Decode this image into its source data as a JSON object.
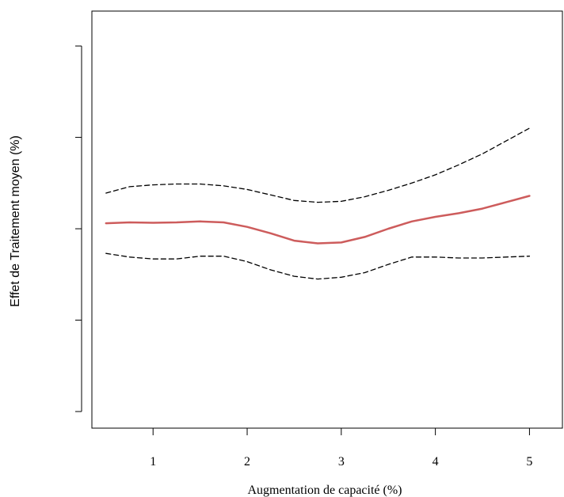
{
  "chart_data": {
    "type": "line",
    "title": "",
    "xlabel": "Augmentation de capacité (%)",
    "ylabel": "Effet de Traitement moyen (%)",
    "x": [
      0.5,
      0.75,
      1.0,
      1.25,
      1.5,
      1.75,
      2.0,
      2.25,
      2.5,
      2.75,
      3.0,
      3.25,
      3.5,
      3.75,
      4.0,
      4.25,
      4.5,
      4.75,
      5.0
    ],
    "xlim": [
      0.35,
      5.35
    ],
    "ylim": [
      0,
      4.2
    ],
    "x_ticks": [
      1,
      2,
      3,
      4,
      5
    ],
    "x_tick_labels": [
      "1",
      "2",
      "3",
      "4",
      "5"
    ],
    "y_ticks": [
      0,
      1,
      2,
      3,
      4
    ],
    "y_tick_labels": [
      "",
      "",
      "",
      "",
      ""
    ],
    "grid": false,
    "legend": "none",
    "series": [
      {
        "role": "upper",
        "style": "dashed",
        "color": "#000000",
        "values": [
          2.39,
          2.46,
          2.48,
          2.49,
          2.49,
          2.47,
          2.43,
          2.37,
          2.31,
          2.29,
          2.3,
          2.35,
          2.42,
          2.5,
          2.59,
          2.7,
          2.82,
          2.96,
          3.1
        ]
      },
      {
        "role": "mean",
        "style": "solid",
        "color": "#cd5c5c",
        "values": [
          2.06,
          2.07,
          2.065,
          2.07,
          2.08,
          2.07,
          2.02,
          1.95,
          1.87,
          1.84,
          1.85,
          1.91,
          2.0,
          2.08,
          2.13,
          2.17,
          2.22,
          2.29,
          2.36
        ]
      },
      {
        "role": "lower",
        "style": "dashed",
        "color": "#000000",
        "values": [
          1.73,
          1.69,
          1.67,
          1.67,
          1.7,
          1.7,
          1.64,
          1.55,
          1.48,
          1.45,
          1.47,
          1.52,
          1.61,
          1.69,
          1.69,
          1.68,
          1.68,
          1.69,
          1.7
        ]
      }
    ]
  }
}
